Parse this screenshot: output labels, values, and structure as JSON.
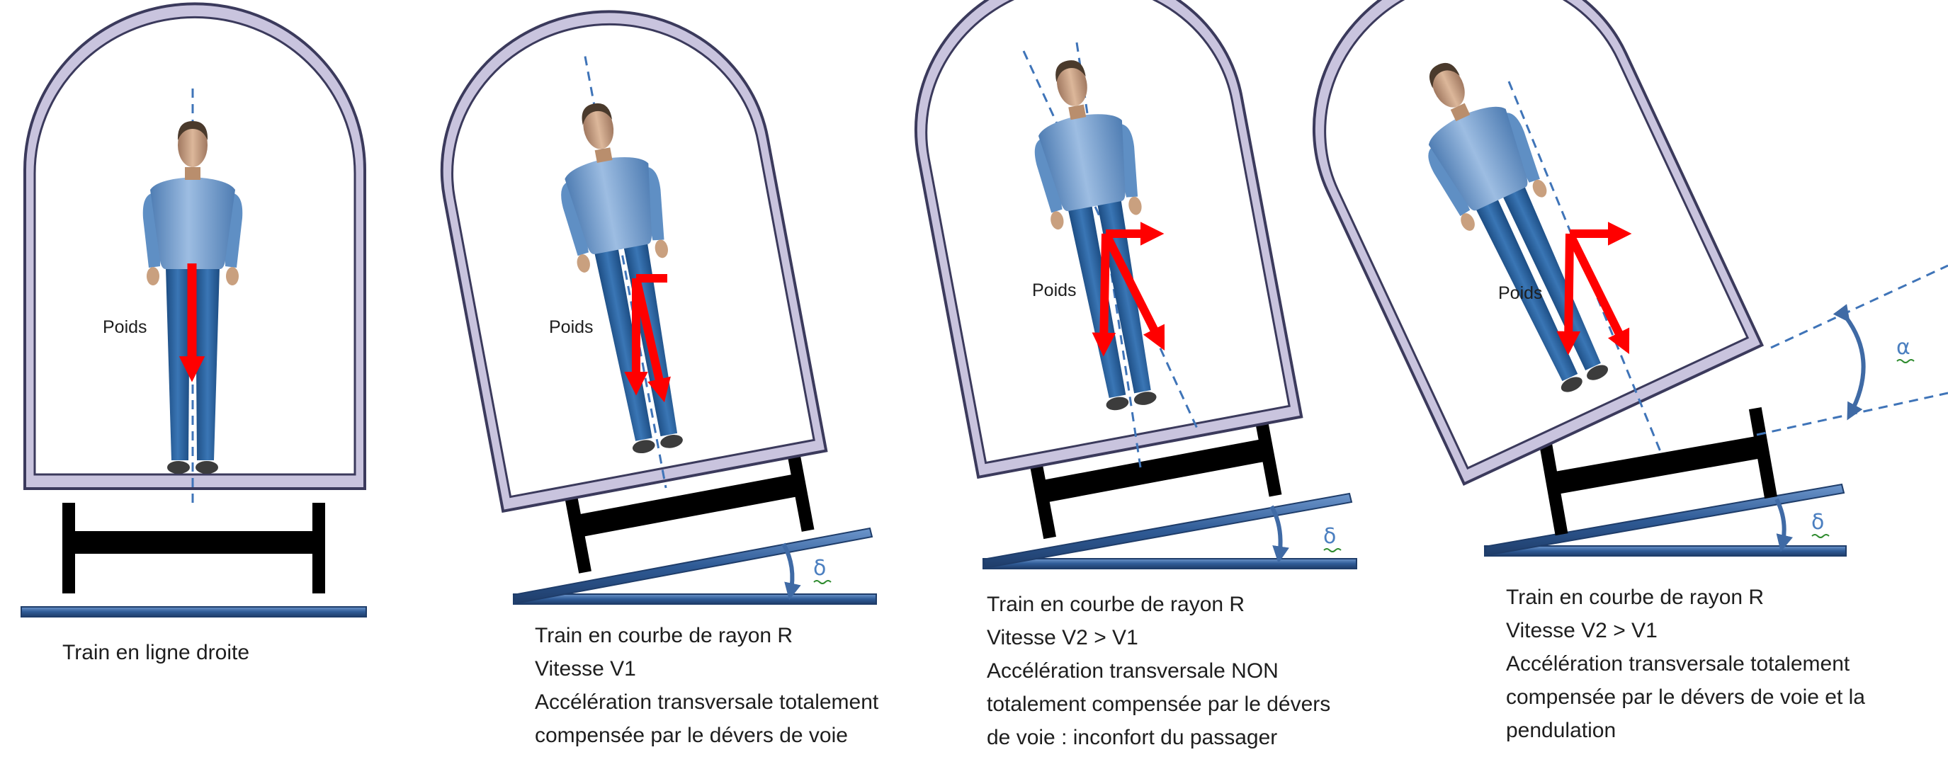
{
  "panels": [
    {
      "id": "straight",
      "weight_label": "Poids",
      "caption": [
        "Train en ligne droite"
      ]
    },
    {
      "id": "curve-v1",
      "weight_label": "Poids",
      "angle_symbol": "δ",
      "caption": [
        "Train en courbe de rayon R",
        "Vitesse V1",
        "Accélération transversale totalement",
        "compensée par le dévers de voie"
      ]
    },
    {
      "id": "curve-v2",
      "weight_label": "Poids",
      "angle_symbol": "δ",
      "caption": [
        "Train en courbe de rayon R",
        "Vitesse V2 > V1",
        "Accélération transversale NON",
        "totalement compensée par le dévers",
        "de voie : inconfort du passager"
      ]
    },
    {
      "id": "tilting",
      "weight_label": "Poids",
      "angle_symbol": "δ",
      "tilt_symbol": "α",
      "caption": [
        "Train en courbe de rayon R",
        "Vitesse V2 > V1",
        "Accélération transversale totalement",
        "compensée par le dévers de voie et la",
        "pendulation"
      ]
    }
  ],
  "colors": {
    "car_body_fill": "#c9c4de",
    "car_body_stroke": "#3b3a5c",
    "rail": "#2f5b96",
    "rail_edge": "#1f3d6a",
    "axis_dashed": "#3f74b8",
    "force_arrow": "#ff0000",
    "bogie": "#000000",
    "passenger_body": "#6f99c9",
    "passenger_legs": "#2a5f98",
    "angle_arc": "#3f6aa5",
    "angle_label": "#4b7fc0",
    "squiggle": "#2e8b2e"
  },
  "icons": [
    "passenger-figure-icon",
    "weight-arrow-icon",
    "bogie-icon",
    "rail-icon",
    "angle-arc-icon"
  ]
}
